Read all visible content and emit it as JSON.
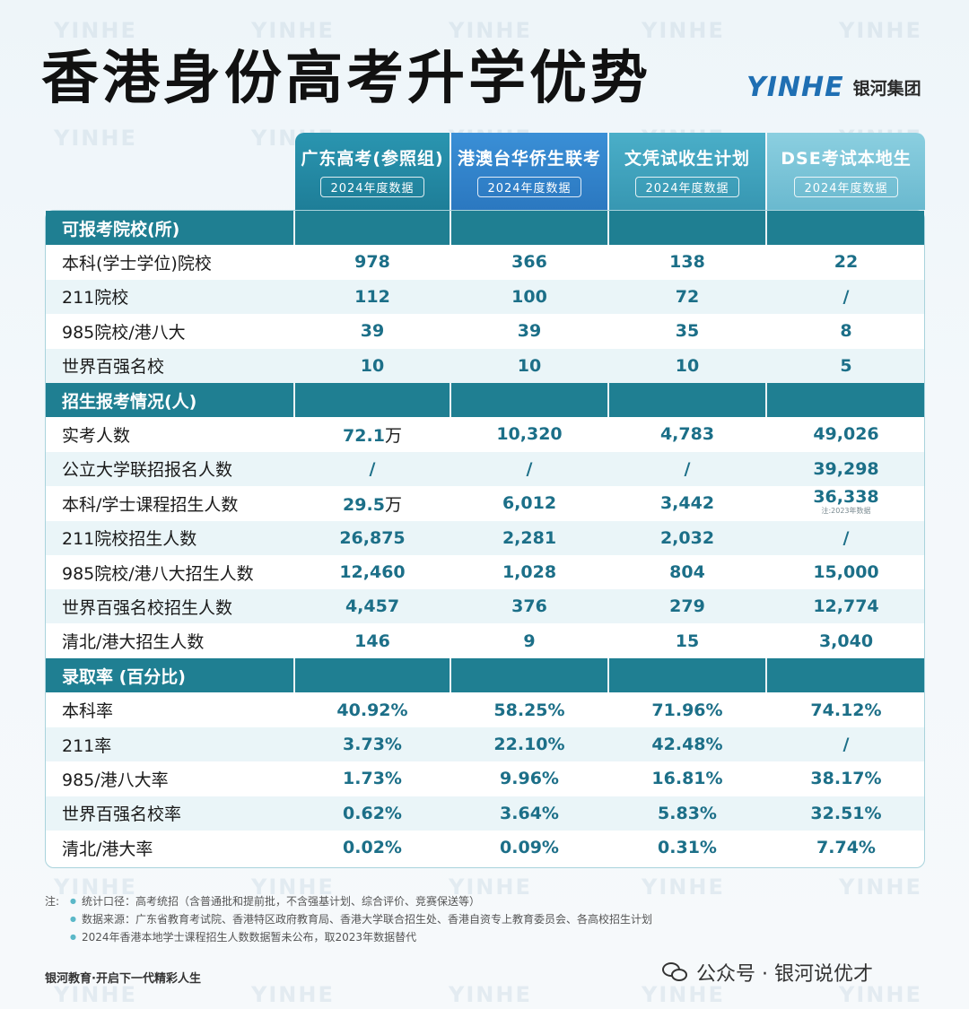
{
  "title": "香港身份高考升学优势",
  "logo": {
    "mark": "YINHE",
    "text": "银河集团"
  },
  "watermark": "YINHE",
  "columns": [
    {
      "name": "广东高考(参照组)",
      "tag": "2024年度数据"
    },
    {
      "name": "港澳台华侨生联考",
      "tag": "2024年度数据"
    },
    {
      "name": "文凭试收生计划",
      "tag": "2024年度数据"
    },
    {
      "name": "DSE考试本地生",
      "tag": "2024年度数据"
    }
  ],
  "sections": [
    {
      "title": "可报考院校(所)",
      "rows": [
        {
          "label": "本科(学士学位)院校",
          "values": [
            "978",
            "366",
            "138",
            "22"
          ]
        },
        {
          "label": "211院校",
          "values": [
            "112",
            "100",
            "72",
            "/"
          ]
        },
        {
          "label": "985院校/港八大",
          "values": [
            "39",
            "39",
            "35",
            "8"
          ]
        },
        {
          "label": "世界百强名校",
          "values": [
            "10",
            "10",
            "10",
            "5"
          ]
        }
      ]
    },
    {
      "title": "招生报考情况(人)",
      "rows": [
        {
          "label": "实考人数",
          "values": [
            "72.1",
            "10,320",
            "4,783",
            "49,026"
          ],
          "units": [
            "万",
            "",
            "",
            ""
          ]
        },
        {
          "label": "公立大学联招报名人数",
          "values": [
            "/",
            "/",
            "/",
            "39,298"
          ]
        },
        {
          "label": "本科/学士课程招生人数",
          "values": [
            "29.5",
            "6,012",
            "3,442",
            "36,338"
          ],
          "units": [
            "万",
            "",
            "",
            ""
          ],
          "note": "注:2023年数据"
        },
        {
          "label": "211院校招生人数",
          "values": [
            "26,875",
            "2,281",
            "2,032",
            "/"
          ]
        },
        {
          "label": "985院校/港八大招生人数",
          "values": [
            "12,460",
            "1,028",
            "804",
            "15,000"
          ]
        },
        {
          "label": "世界百强名校招生人数",
          "values": [
            "4,457",
            "376",
            "279",
            "12,774"
          ]
        },
        {
          "label": "清北/港大招生人数",
          "values": [
            "146",
            "9",
            "15",
            "3,040"
          ]
        }
      ]
    },
    {
      "title": "录取率 (百分比)",
      "rows": [
        {
          "label": "本科率",
          "values": [
            "40.92%",
            "58.25%",
            "71.96%",
            "74.12%"
          ]
        },
        {
          "label": "211率",
          "values": [
            "3.73%",
            "22.10%",
            "42.48%",
            "/"
          ]
        },
        {
          "label": "985/港八大率",
          "values": [
            "1.73%",
            "9.96%",
            "16.81%",
            "38.17%"
          ]
        },
        {
          "label": "世界百强名校率",
          "values": [
            "0.62%",
            "3.64%",
            "5.83%",
            "32.51%"
          ]
        },
        {
          "label": "清北/港大率",
          "values": [
            "0.02%",
            "0.09%",
            "0.31%",
            "7.74%"
          ]
        }
      ]
    }
  ],
  "notes": {
    "prefix": "注:",
    "items": [
      "统计口径：高考统招（含普通批和提前批，不含强基计划、综合评价、竞赛保送等）",
      "数据来源：广东省教育考试院、香港特区政府教育局、香港大学联合招生处、香港自资专上教育委员会、各高校招生计划",
      "2024年香港本地学士课程招生人数数据暂未公布，取2023年数据替代"
    ]
  },
  "footer": {
    "slogan": "银河教育·开启下一代精彩人生",
    "wechat": "公众号 · 银河说优才"
  }
}
